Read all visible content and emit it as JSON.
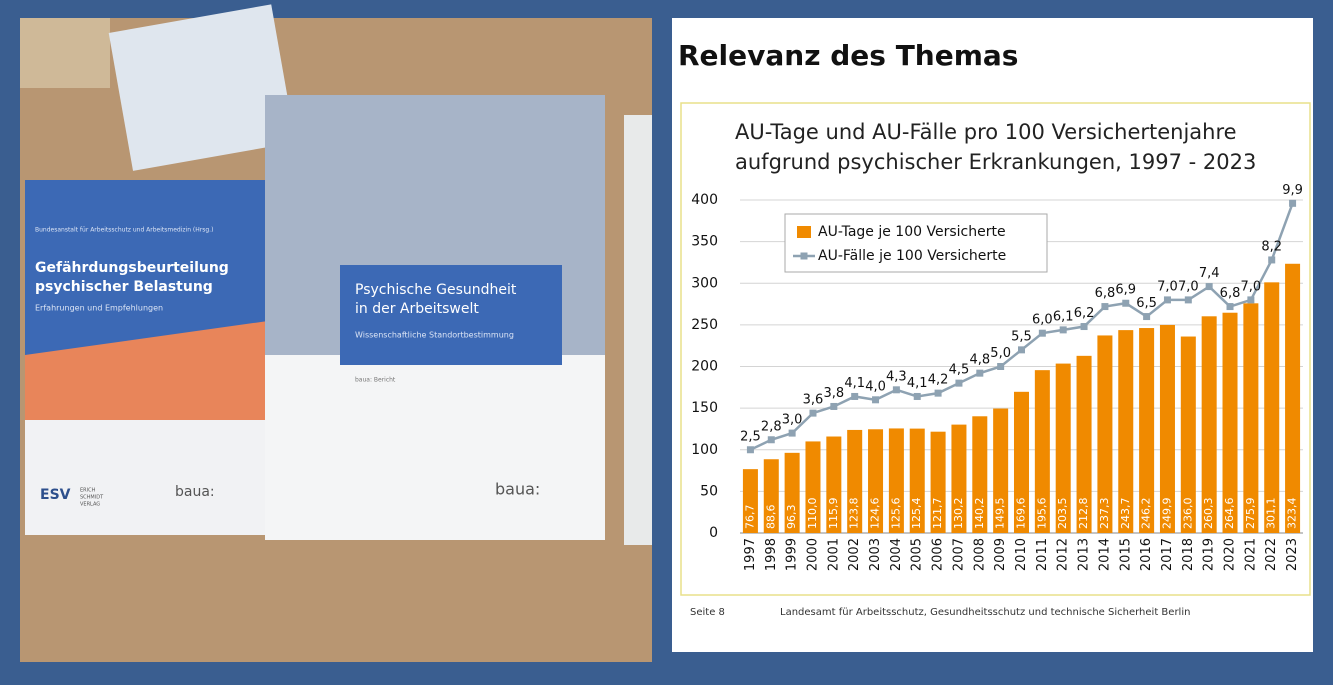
{
  "photo": {
    "book1": {
      "publisher_line": "Bundesanstalt für Arbeitsschutz und Arbeitsmedizin (Hrsg.)",
      "title_lines": [
        "Gefährdungsbeurteilung",
        "psychischer Belastung"
      ],
      "subtitle": "Erfahrungen und Empfehlungen",
      "logo_left": "ESV",
      "logo_left_sub": [
        "ERICH",
        "SCHMIDT",
        "VERLAG"
      ],
      "logo_right": "baua:"
    },
    "book2": {
      "title_lines": [
        "Psychische Gesundheit",
        "in der Arbeitswelt"
      ],
      "subtitle": "Wissenschaftliche Standortbestimmung",
      "series": "baua: Bericht",
      "logo": "baua:"
    }
  },
  "slide": {
    "heading": "Relevanz des Themas",
    "page": "Seite 8",
    "source": "Landesamt für Arbeitsschutz, Gesundheitsschutz und technische Sicherheit Berlin"
  },
  "chart_data": {
    "type": "bar_line",
    "title_lines": [
      "AU-Tage und AU-Fälle pro 100 Versichertenjahre",
      "aufgrund psychischer Erkrankungen, 1997 - 2023"
    ],
    "categories": [
      "1997",
      "1998",
      "1999",
      "2000",
      "2001",
      "2002",
      "2003",
      "2004",
      "2005",
      "2006",
      "2007",
      "2008",
      "2009",
      "2010",
      "2011",
      "2012",
      "2013",
      "2014",
      "2015",
      "2016",
      "2017",
      "2018",
      "2019",
      "2020",
      "2021",
      "2022",
      "2023"
    ],
    "series": [
      {
        "name": "AU-Tage je 100 Versicherte",
        "type": "bar",
        "color": "#f08a00",
        "values": [
          76.7,
          88.6,
          96.3,
          110.0,
          115.9,
          123.8,
          124.6,
          125.6,
          125.4,
          121.7,
          130.2,
          140.2,
          149.5,
          169.6,
          195.6,
          203.5,
          212.8,
          237.3,
          243.7,
          246.2,
          249.9,
          236.0,
          260.3,
          264.6,
          275.9,
          301.1,
          323.4
        ],
        "value_labels": [
          "76,7",
          "88,6",
          "96,3",
          "110,0",
          "115,9",
          "123,8",
          "124,6",
          "125,6",
          "125,4",
          "121,7",
          "130,2",
          "140,2",
          "149,5",
          "169,6",
          "195,6",
          "203,5",
          "212,8",
          "237,3",
          "243,7",
          "246,2",
          "249,9",
          "236,0",
          "260,3",
          "264,6",
          "275,9",
          "301,1",
          "323,4"
        ]
      },
      {
        "name": "AU-Fälle je 100 Versicherte",
        "type": "line",
        "axis": "y2",
        "color": "#8ea2b2",
        "values": [
          2.5,
          2.8,
          3.0,
          3.6,
          3.8,
          4.1,
          4.0,
          4.3,
          4.1,
          4.2,
          4.5,
          4.8,
          5.0,
          5.5,
          6.0,
          6.1,
          6.2,
          6.8,
          6.9,
          6.5,
          7.0,
          7.0,
          7.4,
          6.8,
          7.0,
          8.2,
          9.9
        ],
        "value_labels": [
          "2,5",
          "2,8",
          "3,0",
          "3,6",
          "3,8",
          "4,1",
          "4,0",
          "4,3",
          "4,1",
          "4,2",
          "4,5",
          "4,8",
          "5,0",
          "5,5",
          "6,0",
          "6,1",
          "6,2",
          "6,8",
          "6,9",
          "6,5",
          "7,0",
          "7,0",
          "7,4",
          "6,8",
          "7,0",
          "8,2",
          "9,9"
        ]
      }
    ],
    "ylim": [
      0,
      400
    ],
    "yticks": [
      0,
      50,
      100,
      150,
      200,
      250,
      300,
      350,
      400
    ],
    "y2lim": [
      0,
      10
    ],
    "grid": true,
    "legend": "upper left"
  }
}
